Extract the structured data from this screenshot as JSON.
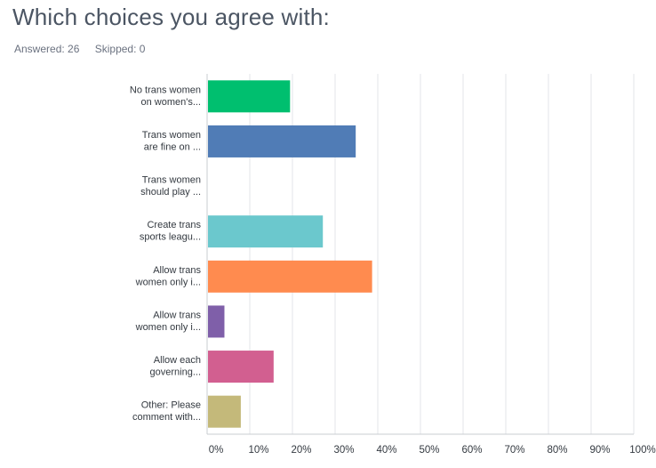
{
  "header": {
    "title": "Which choices you agree with:",
    "answered_label": "Answered: 26",
    "skipped_label": "Skipped: 0"
  },
  "chart_data": {
    "type": "bar",
    "orientation": "horizontal",
    "categories": [
      [
        "No trans women",
        "on women's..."
      ],
      [
        "Trans women",
        "are fine on ..."
      ],
      [
        "Trans women",
        "should play ..."
      ],
      [
        "Create trans",
        "sports leagu..."
      ],
      [
        "Allow trans",
        "women only i..."
      ],
      [
        "Allow trans",
        "women only i..."
      ],
      [
        "Allow each",
        "governing..."
      ],
      [
        "Other: Please",
        "comment with..."
      ]
    ],
    "values": [
      19.23,
      34.62,
      0,
      26.92,
      38.46,
      3.85,
      15.38,
      7.69
    ],
    "colors": [
      "#00bf6f",
      "#507cb6",
      "#f05b24",
      "#6bc8cd",
      "#ff8b4f",
      "#7f5fa9",
      "#d25f90",
      "#c4b97a"
    ],
    "xlim": [
      0,
      100
    ],
    "ticks": [
      "0%",
      "10%",
      "20%",
      "30%",
      "40%",
      "50%",
      "60%",
      "70%",
      "80%",
      "90%",
      "100%"
    ],
    "grid": true,
    "legend": "none"
  }
}
